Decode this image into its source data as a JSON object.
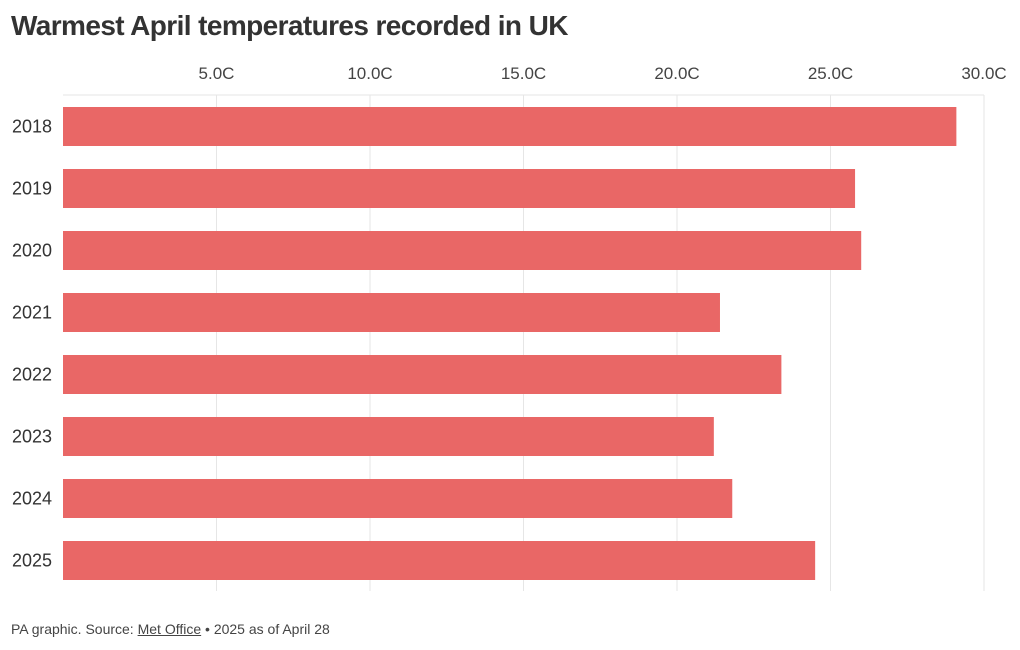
{
  "title": "Warmest April temperatures recorded in UK",
  "footer": {
    "prefix": "PA graphic. Source: ",
    "source_link": "Met Office",
    "suffix": " • 2025 as of April 28"
  },
  "colors": {
    "bar": "#e96766",
    "grid": "#e6e6e6",
    "text": "#333333"
  },
  "chart_data": {
    "type": "bar",
    "orientation": "horizontal",
    "title": "Warmest April temperatures recorded in UK",
    "categories": [
      "2018",
      "2019",
      "2020",
      "2021",
      "2022",
      "2023",
      "2024",
      "2025"
    ],
    "values": [
      29.1,
      25.8,
      26.0,
      21.4,
      23.4,
      21.2,
      21.8,
      24.5
    ],
    "xlim": [
      0,
      30
    ],
    "xticks": [
      5,
      10,
      15,
      20,
      25,
      30
    ],
    "xtick_labels": [
      "5.0C",
      "10.0C",
      "15.0C",
      "20.0C",
      "25.0C",
      "30.0C"
    ],
    "xaxis_position": "top",
    "grid": true,
    "legend": "none"
  }
}
